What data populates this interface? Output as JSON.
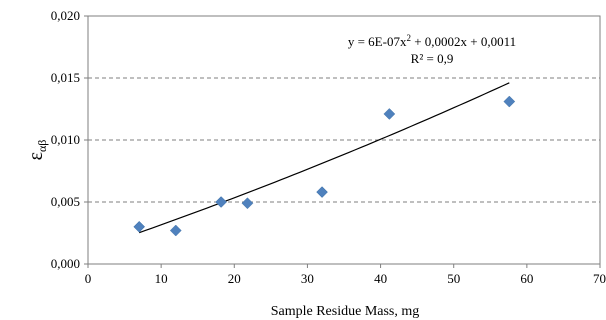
{
  "chart_data": {
    "type": "scatter",
    "x": [
      7,
      12,
      18.2,
      21.8,
      32,
      41.2,
      57.6
    ],
    "y": [
      0.003,
      0.0027,
      0.005,
      0.0049,
      0.0058,
      0.0121,
      0.0131
    ],
    "xlim": [
      0,
      70
    ],
    "ylim": [
      0,
      0.02
    ],
    "xticks": [
      0,
      10,
      20,
      30,
      40,
      50,
      60,
      70
    ],
    "yticks": [
      0.0,
      0.005,
      0.01,
      0.015,
      0.02
    ],
    "xtick_labels": [
      "0",
      "10",
      "20",
      "30",
      "40",
      "50",
      "60",
      "70"
    ],
    "ytick_labels": [
      "0,000",
      "0,005",
      "0,010",
      "0,015",
      "0,020"
    ],
    "xlabel": "Sample Residue Mass, mg",
    "ylabel": "ε",
    "ylabel_subscript": "αβ",
    "grid": "horizontal dashed",
    "marker_color": "#4f81bd",
    "trendline": {
      "type": "polynomial",
      "coefficients": {
        "a": 6e-07,
        "b": 0.0002,
        "c": 0.0011
      },
      "x_range": [
        7,
        57.6
      ],
      "equation_label": {
        "y": "y = 6E-07x",
        "sup": "2",
        "rest": " + 0,0002x + 0,0011"
      },
      "r2_label": "R² = 0,9"
    }
  }
}
